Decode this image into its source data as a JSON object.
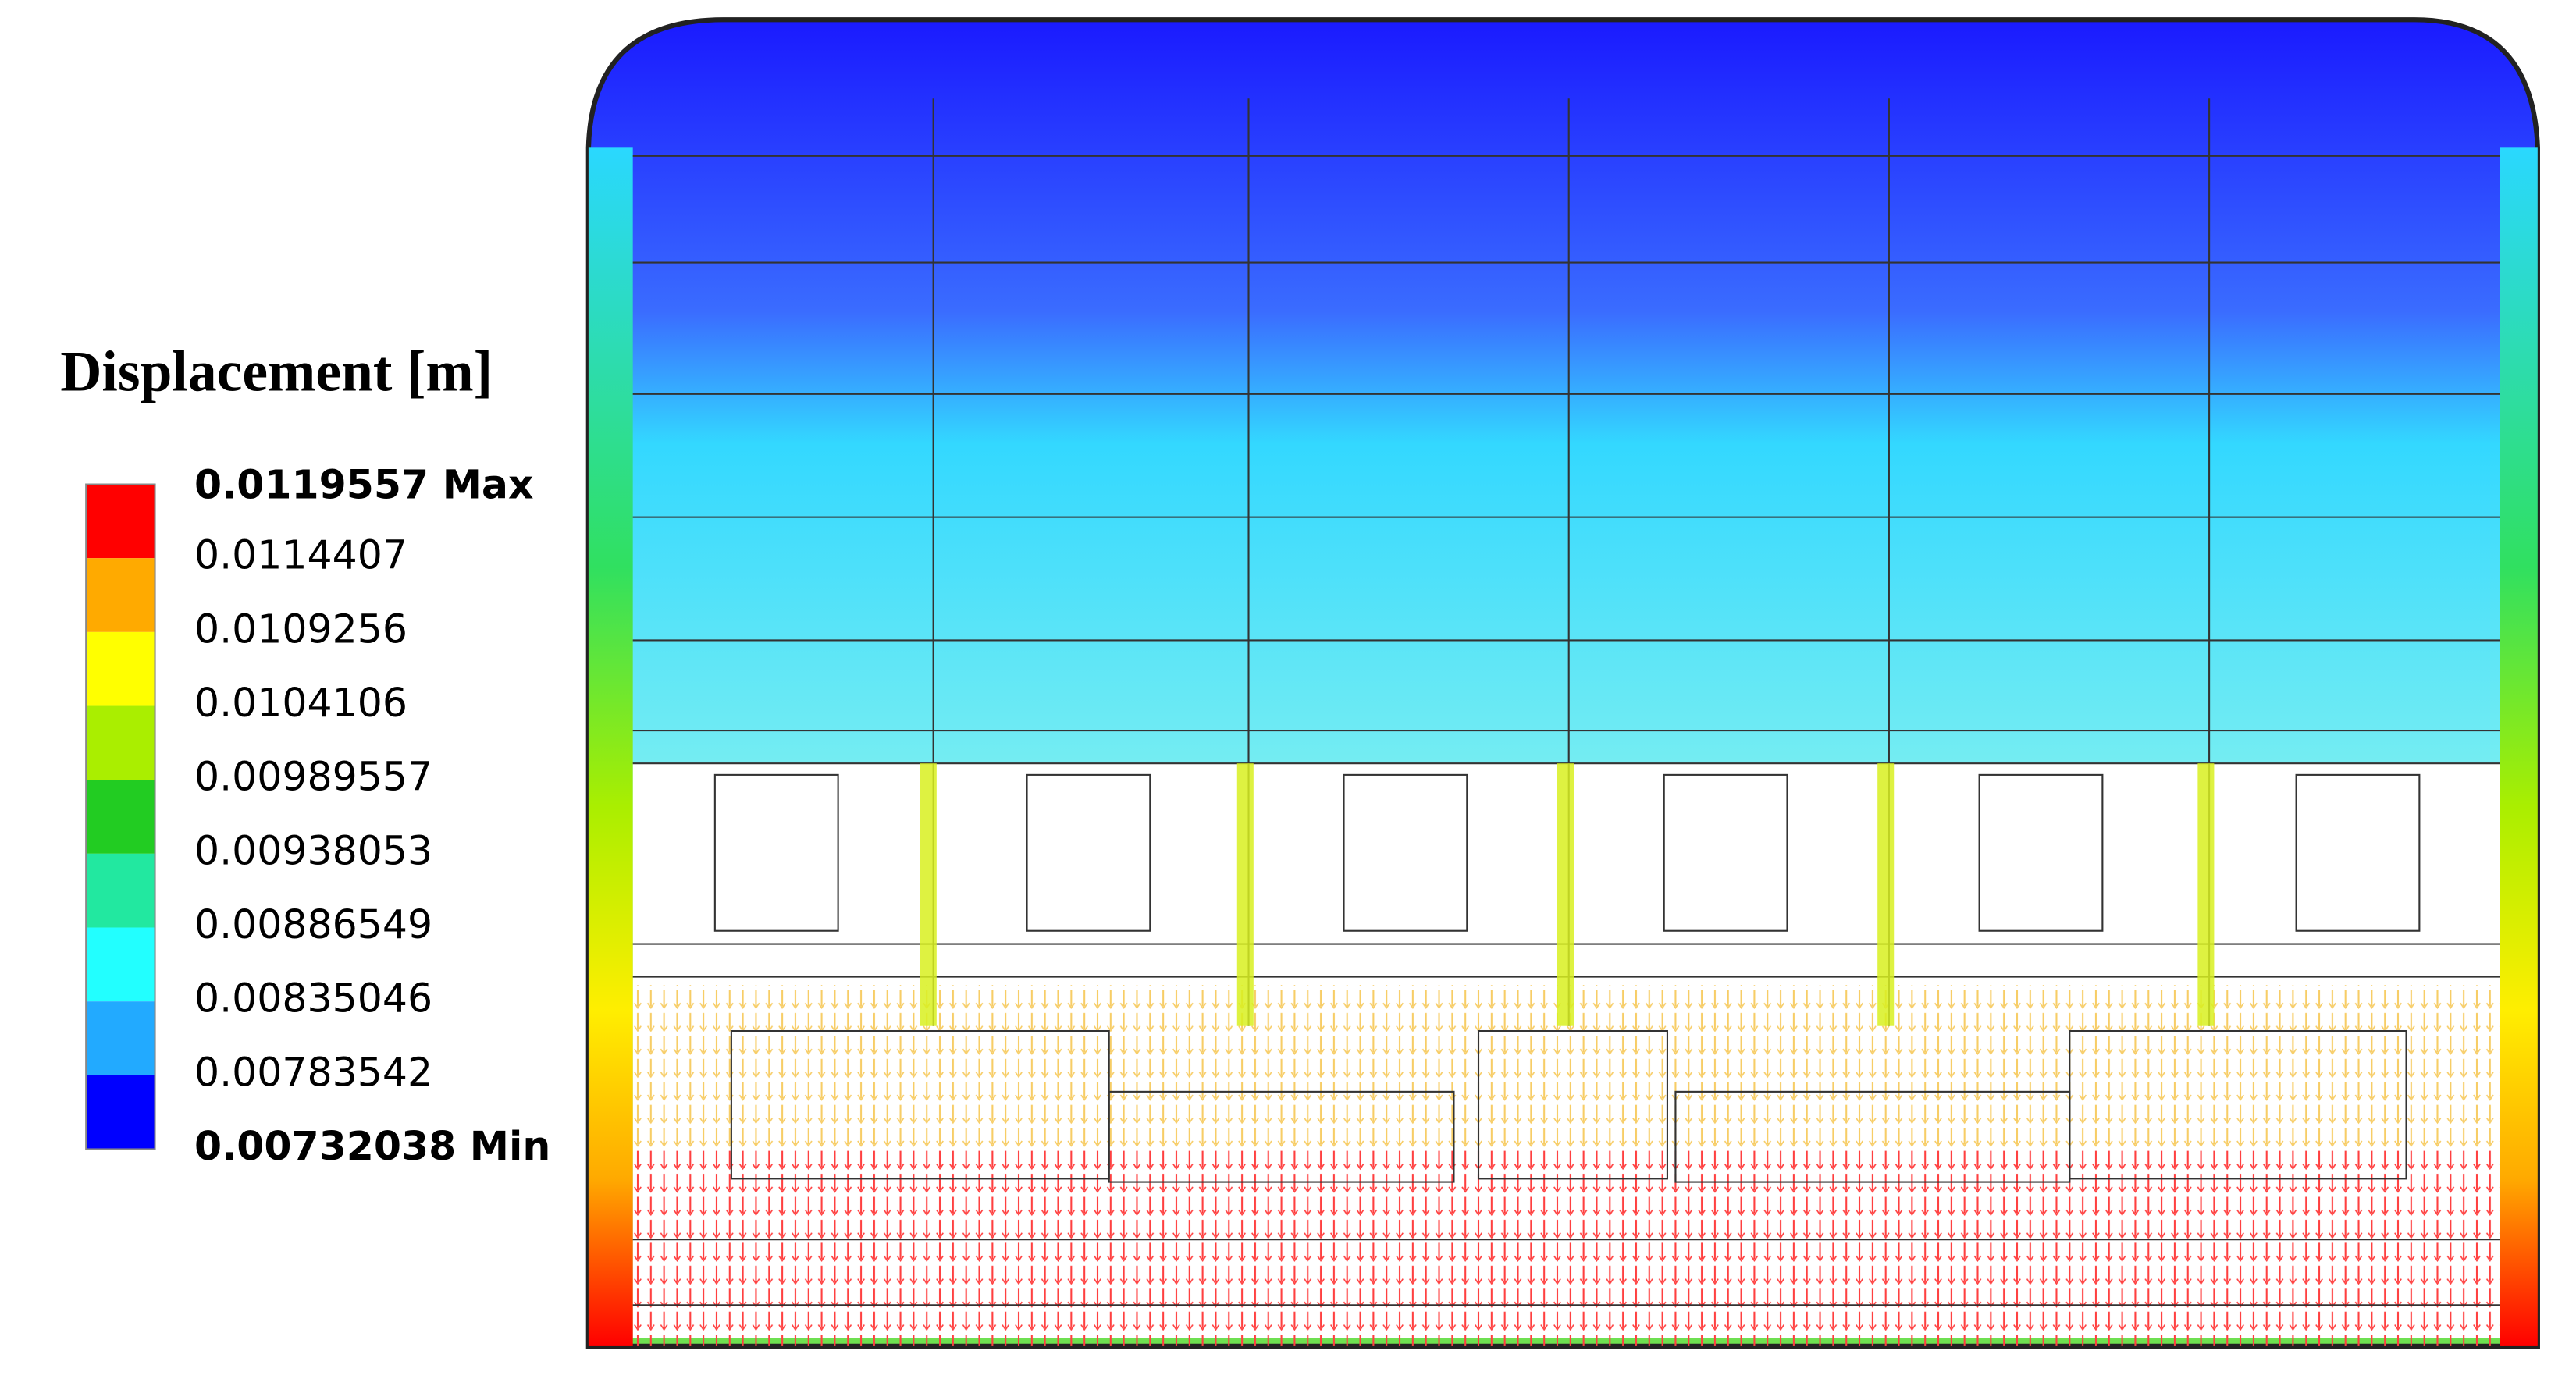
{
  "legend": {
    "title": "Displacement [m]",
    "labels": [
      "0.0119557 Max",
      "0.0114407",
      "0.0109256",
      "0.0104106",
      "0.00989557",
      "0.00938053",
      "0.00886549",
      "0.00835046",
      "0.00783542",
      "0.00732038 Min"
    ],
    "colors": [
      "#ff0000",
      "#ffaa00",
      "#ffff00",
      "#aaee00",
      "#22cc22",
      "#22e8a0",
      "#22ffff",
      "#22aaff",
      "#0000ff"
    ]
  }
}
